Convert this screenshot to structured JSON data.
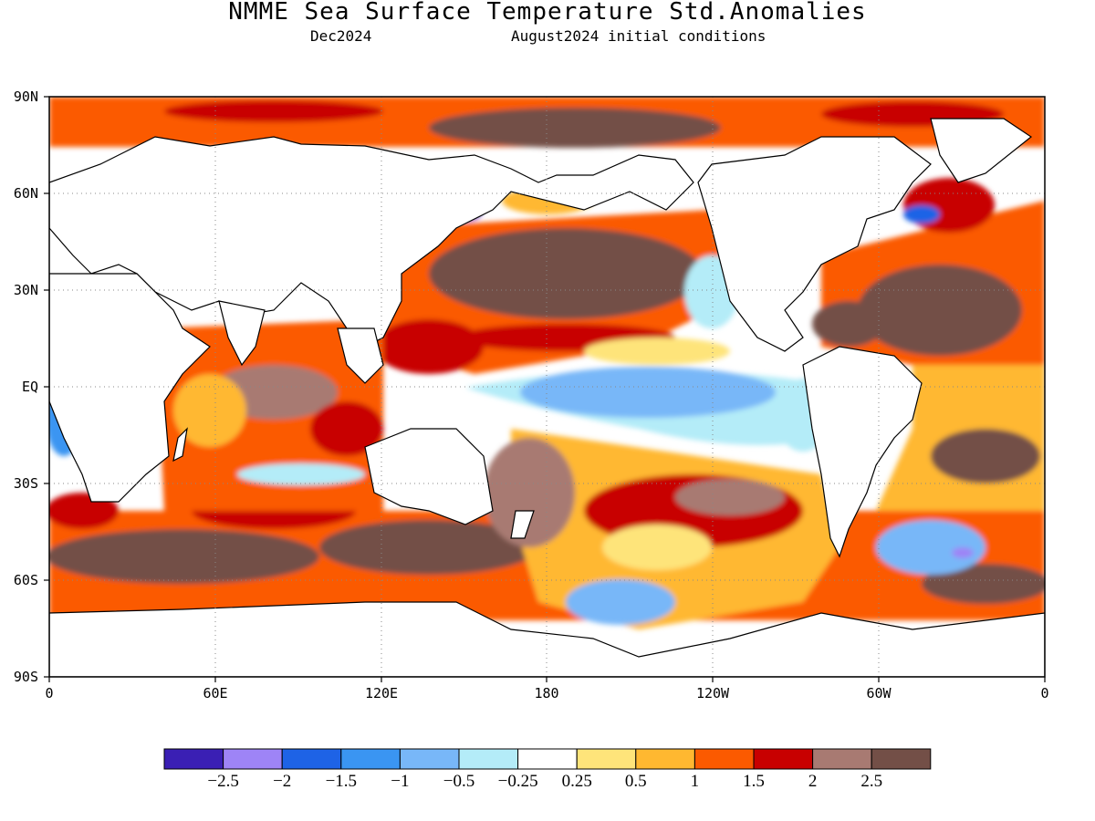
{
  "header": {
    "title": "NMME Sea Surface Temperature Std.Anomalies",
    "target_month": "Dec2024",
    "initial_conditions": "August2024 initial conditions"
  },
  "axes": {
    "y_ticks": [
      "90N",
      "60N",
      "30N",
      "EQ",
      "30S",
      "60S",
      "90S"
    ],
    "x_ticks": [
      "0",
      "60E",
      "120E",
      "180",
      "120W",
      "60W",
      "0"
    ],
    "lon_range": [
      0,
      360
    ],
    "lat_range": [
      -90,
      90
    ],
    "grid": "dotted"
  },
  "colorbar": {
    "colors": [
      "#3a1fb4",
      "#9e84f6",
      "#1e63e6",
      "#3a95f2",
      "#78b7f8",
      "#b4ecf8",
      "#ffffff",
      "#fee47a",
      "#ffb830",
      "#fb5a00",
      "#c80000",
      "#a87a72",
      "#734f47"
    ],
    "labels": [
      "-2.5",
      "-2",
      "-1.5",
      "-1",
      "-0.5",
      "-0.25",
      "0.25",
      "0.5",
      "1",
      "1.5",
      "2",
      "2.5"
    ]
  }
}
